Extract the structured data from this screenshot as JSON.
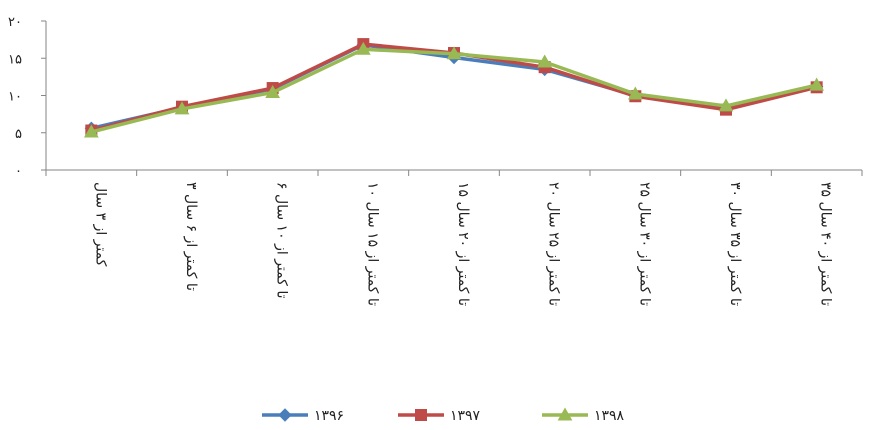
{
  "chart_data": {
    "type": "line",
    "categories": [
      "کمتر از ۳ سال",
      "۳ تا کمتر از ۶ سال",
      "۶ تا کمتر از ۱۰ سال",
      "۱۰ تا کمتر از ۱۵ سال",
      "۱۵ تا کمتر از ۲۰ سال",
      "۲۰ تا کمتر از ۲۵ سال",
      "۲۵ تا کمتر از ۳۰ سال",
      "۳۰ تا کمتر از ۳۵ سال",
      "۳۵ تا کمتر از ۴۰ سال"
    ],
    "series": [
      {
        "name": "۱۳۹۶",
        "color": "#4a7ebb",
        "marker": "diamond",
        "values": [
          5.6,
          8.4,
          10.9,
          16.8,
          15.1,
          13.5,
          10.0,
          8.4,
          11.2
        ]
      },
      {
        "name": "۱۳۹۷",
        "color": "#be4b48",
        "marker": "square",
        "values": [
          5.3,
          8.5,
          11.0,
          16.9,
          15.7,
          13.8,
          9.9,
          8.1,
          11.1
        ]
      },
      {
        "name": "۱۳۹۸",
        "color": "#98b954",
        "marker": "triangle",
        "values": [
          5.1,
          8.2,
          10.4,
          16.2,
          15.6,
          14.5,
          10.2,
          8.6,
          11.4
        ]
      }
    ],
    "y_ticks": [
      "۰",
      "۵",
      "۱۰",
      "۱۵",
      "۲۰"
    ],
    "ylim": [
      0,
      20
    ],
    "title": "",
    "xlabel": "",
    "ylabel": "",
    "grid": false,
    "legend_position": "bottom"
  }
}
